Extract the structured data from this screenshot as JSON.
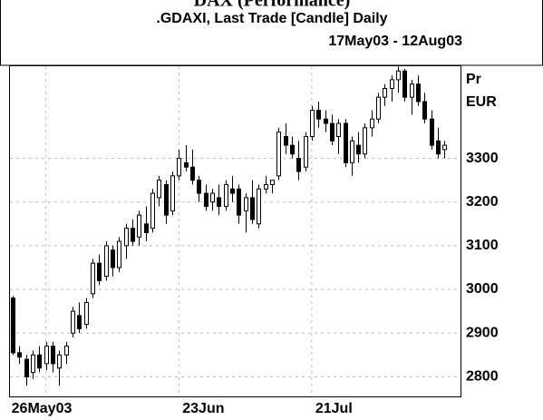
{
  "chart_data": {
    "type": "candlestick",
    "title": "DAX (Performance)",
    "subtitle": ".GDAXI, Last Trade [Candle] Daily",
    "date_range": "17May03 - 12Aug03",
    "y_axis_label": "Pr",
    "y_axis_unit": "EUR",
    "categories": [
      null,
      null,
      null,
      null,
      null,
      "26May03",
      null,
      null,
      null,
      null,
      null,
      null,
      null,
      null,
      null,
      null,
      null,
      null,
      null,
      null,
      null,
      null,
      null,
      null,
      null,
      "23Jun",
      null,
      null,
      null,
      null,
      null,
      null,
      null,
      null,
      null,
      null,
      null,
      null,
      null,
      null,
      null,
      null,
      null,
      null,
      null,
      "21Jul",
      null,
      null,
      null,
      null,
      null,
      null,
      null,
      null,
      null,
      null,
      null,
      null,
      null,
      null,
      null,
      null,
      null,
      null,
      null,
      null
    ],
    "series": [
      {
        "name": ".GDAXI",
        "open": [
          2980,
          2855,
          2840,
          2810,
          2850,
          2830,
          2870,
          2820,
          2850,
          2900,
          2940,
          2920,
          2990,
          3060,
          3030,
          3090,
          3050,
          3100,
          3140,
          3120,
          3150,
          3140,
          3210,
          3240,
          3180,
          3260,
          3290,
          3280,
          3250,
          3220,
          3200,
          3210,
          3190,
          3230,
          3230,
          3180,
          3210,
          3150,
          3230,
          3240,
          3260,
          3350,
          3330,
          3300,
          3280,
          3350,
          3410,
          3390,
          3380,
          3350,
          3380,
          3290,
          3330,
          3310,
          3370,
          3390,
          3440,
          3460,
          3480,
          3500,
          3440,
          3470,
          3430,
          3390,
          3340,
          3320
        ],
        "high": [
          2985,
          2870,
          2850,
          2860,
          2870,
          2880,
          2880,
          2860,
          2880,
          2960,
          2970,
          2980,
          3070,
          3080,
          3110,
          3100,
          3120,
          3150,
          3160,
          3180,
          3190,
          3230,
          3260,
          3250,
          3270,
          3320,
          3330,
          3320,
          3260,
          3240,
          3230,
          3240,
          3250,
          3260,
          3240,
          3220,
          3250,
          3240,
          3260,
          3250,
          3370,
          3380,
          3350,
          3340,
          3360,
          3420,
          3430,
          3410,
          3400,
          3390,
          3390,
          3350,
          3360,
          3380,
          3410,
          3450,
          3470,
          3490,
          3510,
          3505,
          3480,
          3490,
          3450,
          3410,
          3370,
          3340
        ],
        "low": [
          2850,
          2830,
          2780,
          2795,
          2810,
          2815,
          2810,
          2780,
          2830,
          2890,
          2900,
          2910,
          2980,
          3010,
          3020,
          3030,
          3040,
          3070,
          3100,
          3100,
          3110,
          3130,
          3190,
          3150,
          3170,
          3250,
          3270,
          3240,
          3200,
          3180,
          3180,
          3170,
          3180,
          3200,
          3150,
          3130,
          3150,
          3140,
          3220,
          3220,
          3250,
          3310,
          3300,
          3250,
          3270,
          3340,
          3370,
          3360,
          3330,
          3310,
          3280,
          3260,
          3290,
          3300,
          3350,
          3380,
          3420,
          3430,
          3450,
          3430,
          3400,
          3420,
          3380,
          3320,
          3300,
          3300
        ],
        "close": [
          2855,
          2845,
          2800,
          2850,
          2820,
          2870,
          2830,
          2850,
          2870,
          2950,
          2910,
          2970,
          3060,
          3020,
          3100,
          3050,
          3110,
          3140,
          3110,
          3170,
          3130,
          3220,
          3250,
          3170,
          3260,
          3300,
          3280,
          3250,
          3220,
          3190,
          3220,
          3190,
          3240,
          3220,
          3170,
          3210,
          3160,
          3230,
          3240,
          3250,
          3360,
          3330,
          3310,
          3270,
          3350,
          3410,
          3390,
          3380,
          3340,
          3380,
          3290,
          3340,
          3310,
          3370,
          3390,
          3440,
          3460,
          3480,
          3500,
          3440,
          3470,
          3430,
          3390,
          3330,
          3310,
          3330
        ]
      }
    ],
    "ylim": [
      2755,
      3513
    ],
    "yticks": [
      2800,
      2900,
      3000,
      3100,
      3200,
      3300
    ],
    "grid": true
  }
}
